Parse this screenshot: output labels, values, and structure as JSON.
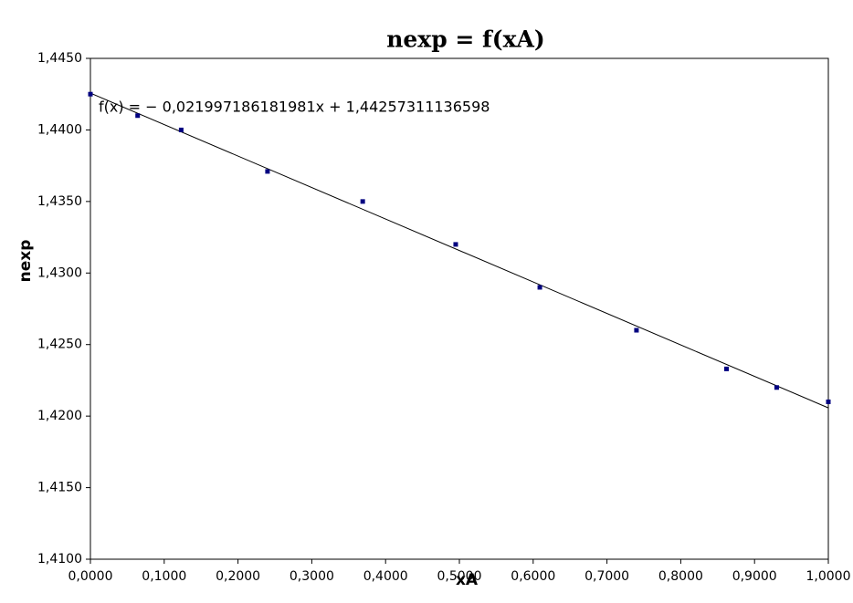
{
  "chart_data": {
    "type": "scatter",
    "title": "nexp = f(xA)",
    "x_label": "xA",
    "y_label": "nexp",
    "annotation": "f(x) = − 0,021997186181981x + 1,44257311136598",
    "trendline": {
      "slope": -0.021997186181981,
      "intercept": 1.44257311136598
    },
    "series": [
      {
        "color": "#000080",
        "x": [
          0.0,
          0.064,
          0.123,
          0.24,
          0.369,
          0.495,
          0.609,
          0.74,
          0.862,
          0.93,
          1.0
        ],
        "values": [
          1.4425,
          1.441,
          1.44,
          1.4371,
          1.435,
          1.432,
          1.429,
          1.426,
          1.4233,
          1.422,
          1.421
        ]
      }
    ],
    "xlim": [
      0,
      1
    ],
    "ylim": [
      1.41,
      1.445
    ],
    "xticks": [
      {
        "value": 0,
        "label": "0,0000"
      },
      {
        "value": 0.1,
        "label": "0,1000"
      },
      {
        "value": 0.2,
        "label": "0,2000"
      },
      {
        "value": 0.3,
        "label": "0,3000"
      },
      {
        "value": 0.4,
        "label": "0,4000"
      },
      {
        "value": 0.5,
        "label": "0,5000"
      },
      {
        "value": 0.6,
        "label": "0,6000"
      },
      {
        "value": 0.7,
        "label": "0,7000"
      },
      {
        "value": 0.8,
        "label": "0,8000"
      },
      {
        "value": 0.9,
        "label": "0,9000"
      },
      {
        "value": 1,
        "label": "1,0000"
      }
    ],
    "yticks": [
      {
        "value": 1.41,
        "label": "1,4100"
      },
      {
        "value": 1.415,
        "label": "1,4150"
      },
      {
        "value": 1.42,
        "label": "1,4200"
      },
      {
        "value": 1.425,
        "label": "1,4250"
      },
      {
        "value": 1.43,
        "label": "1,4300"
      },
      {
        "value": 1.435,
        "label": "1,4350"
      },
      {
        "value": 1.44,
        "label": "1,4400"
      },
      {
        "value": 1.445,
        "label": "1,4450"
      }
    ],
    "grid": false
  }
}
